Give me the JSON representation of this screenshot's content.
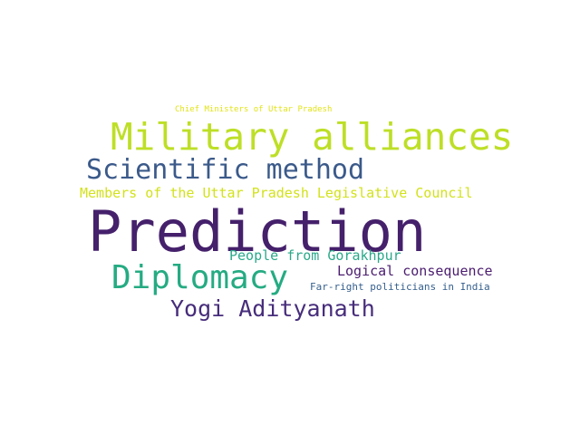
{
  "words": [
    {
      "id": "chief",
      "text": "Chief Ministers of Uttar Pradesh",
      "color": "#e2e418"
    },
    {
      "id": "military",
      "text": "Military alliances",
      "color": "#bddf26"
    },
    {
      "id": "scientific",
      "text": "Scientific method",
      "color": "#3b5a8a"
    },
    {
      "id": "members",
      "text": "Members of the Uttar Pradesh Legislative Council",
      "color": "#d2e21b"
    },
    {
      "id": "prediction",
      "text": "Prediction",
      "color": "#45206b"
    },
    {
      "id": "people",
      "text": "People from Gorakhpur",
      "color": "#2aa98a"
    },
    {
      "id": "logical",
      "text": "Logical consequence",
      "color": "#4b1c6f"
    },
    {
      "id": "diplomacy",
      "text": "Diplomacy",
      "color": "#25ab82"
    },
    {
      "id": "farright",
      "text": "Far-right politicians in India",
      "color": "#355f8d"
    },
    {
      "id": "yogi",
      "text": "Yogi Adityanath",
      "color": "#472d7b"
    }
  ]
}
